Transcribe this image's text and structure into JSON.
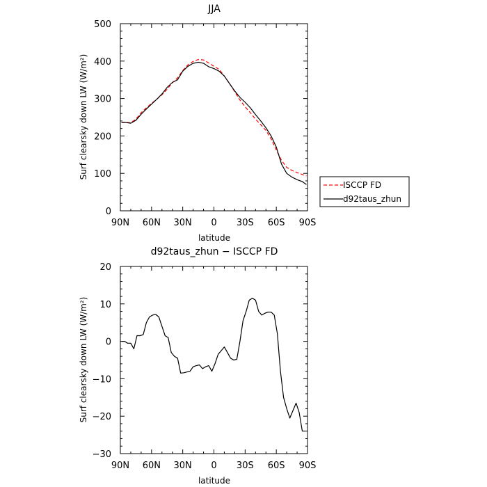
{
  "chart_data": [
    {
      "type": "line",
      "title": "JJA",
      "xlabel": "latitude",
      "ylabel": "Surf clearsky down LW (W/m²)",
      "xlim": [
        90,
        -90
      ],
      "ylim": [
        0,
        500
      ],
      "x_ticks": [
        {
          "value": 90,
          "label": "90N"
        },
        {
          "value": 60,
          "label": "60N"
        },
        {
          "value": 30,
          "label": "30N"
        },
        {
          "value": 0,
          "label": "0"
        },
        {
          "value": -30,
          "label": "30S"
        },
        {
          "value": -60,
          "label": "60S"
        },
        {
          "value": -90,
          "label": "90S"
        }
      ],
      "y_ticks": [
        {
          "value": 0,
          "label": "0"
        },
        {
          "value": 100,
          "label": "100"
        },
        {
          "value": 200,
          "label": "200"
        },
        {
          "value": 300,
          "label": "300"
        },
        {
          "value": 400,
          "label": "400"
        },
        {
          "value": 500,
          "label": "500"
        }
      ],
      "grid": false,
      "legend": "right",
      "x": [
        89,
        85,
        80,
        75,
        70,
        65,
        60,
        55,
        50,
        45,
        40,
        35,
        30,
        25,
        20,
        15,
        10,
        5,
        0,
        -5,
        -10,
        -15,
        -20,
        -25,
        -30,
        -35,
        -40,
        -45,
        -50,
        -55,
        -60,
        -65,
        -70,
        -75,
        -80,
        -85,
        -89
      ],
      "series": [
        {
          "name": "ISCCP FD",
          "color": "#ff0000",
          "dash": true,
          "values": [
            236,
            237,
            235,
            245,
            262,
            275,
            287,
            298,
            310,
            325,
            342,
            355,
            375,
            390,
            399,
            404,
            403,
            395,
            386,
            378,
            360,
            340,
            318,
            296,
            278,
            262,
            245,
            230,
            215,
            192,
            162,
            135,
            116,
            108,
            102,
            97,
            93
          ]
        },
        {
          "name": "d92taus_zhun",
          "color": "#000000",
          "dash": false,
          "values": [
            236,
            236,
            234,
            242,
            258,
            272,
            285,
            298,
            312,
            330,
            343,
            350,
            373,
            386,
            394,
            397,
            394,
            385,
            380,
            373,
            360,
            340,
            320,
            303,
            290,
            275,
            257,
            240,
            222,
            200,
            170,
            125,
            100,
            90,
            83,
            78,
            70
          ]
        }
      ]
    },
    {
      "type": "line",
      "title": "d92taus_zhun − ISCCP FD",
      "xlabel": "latitude",
      "ylabel": "Surf clearsky down LW (W/m²)",
      "xlim": [
        90,
        -90
      ],
      "ylim": [
        -30,
        20
      ],
      "x_ticks": [
        {
          "value": 90,
          "label": "90N"
        },
        {
          "value": 60,
          "label": "60N"
        },
        {
          "value": 30,
          "label": "30N"
        },
        {
          "value": 0,
          "label": "0"
        },
        {
          "value": -30,
          "label": "30S"
        },
        {
          "value": -60,
          "label": "60S"
        },
        {
          "value": -90,
          "label": "90S"
        }
      ],
      "y_ticks": [
        {
          "value": -30,
          "label": "−30"
        },
        {
          "value": -20,
          "label": "−20"
        },
        {
          "value": -10,
          "label": "−10"
        },
        {
          "value": 0,
          "label": "0"
        },
        {
          "value": 10,
          "label": "10"
        },
        {
          "value": 20,
          "label": "20"
        }
      ],
      "grid": false,
      "x": [
        89,
        86,
        83,
        80,
        77,
        74,
        71,
        68,
        65,
        62,
        59,
        56,
        53,
        50,
        47,
        44,
        41,
        38,
        35,
        32,
        29,
        26,
        23,
        20,
        17,
        14,
        11,
        8,
        5,
        2,
        -1,
        -4,
        -7,
        -10,
        -13,
        -16,
        -19,
        -22,
        -25,
        -28,
        -31,
        -34,
        -37,
        -40,
        -43,
        -46,
        -49,
        -52,
        -55,
        -58,
        -61,
        -64,
        -67,
        -70,
        -73,
        -76,
        -79,
        -82,
        -85,
        -88
      ],
      "series": [
        {
          "color": "#000000",
          "values": [
            0,
            0,
            -0.5,
            -0.5,
            -2,
            1.5,
            1.5,
            1.8,
            5,
            6.5,
            7,
            7.2,
            6.5,
            4,
            1.5,
            1,
            -3,
            -4,
            -4.5,
            -8.5,
            -8.4,
            -8.2,
            -8,
            -6.8,
            -6.5,
            -6.3,
            -7.3,
            -6.8,
            -6.5,
            -8,
            -6,
            -3.5,
            -2.5,
            -1.5,
            -3,
            -4.5,
            -5,
            -4.8,
            0,
            5.5,
            8,
            11,
            11.5,
            11,
            8,
            7,
            7.5,
            7.8,
            7.8,
            7,
            2,
            -8,
            -15,
            -18,
            -20.5,
            -18.5,
            -16.5,
            -19,
            -24,
            -24
          ]
        }
      ]
    }
  ]
}
